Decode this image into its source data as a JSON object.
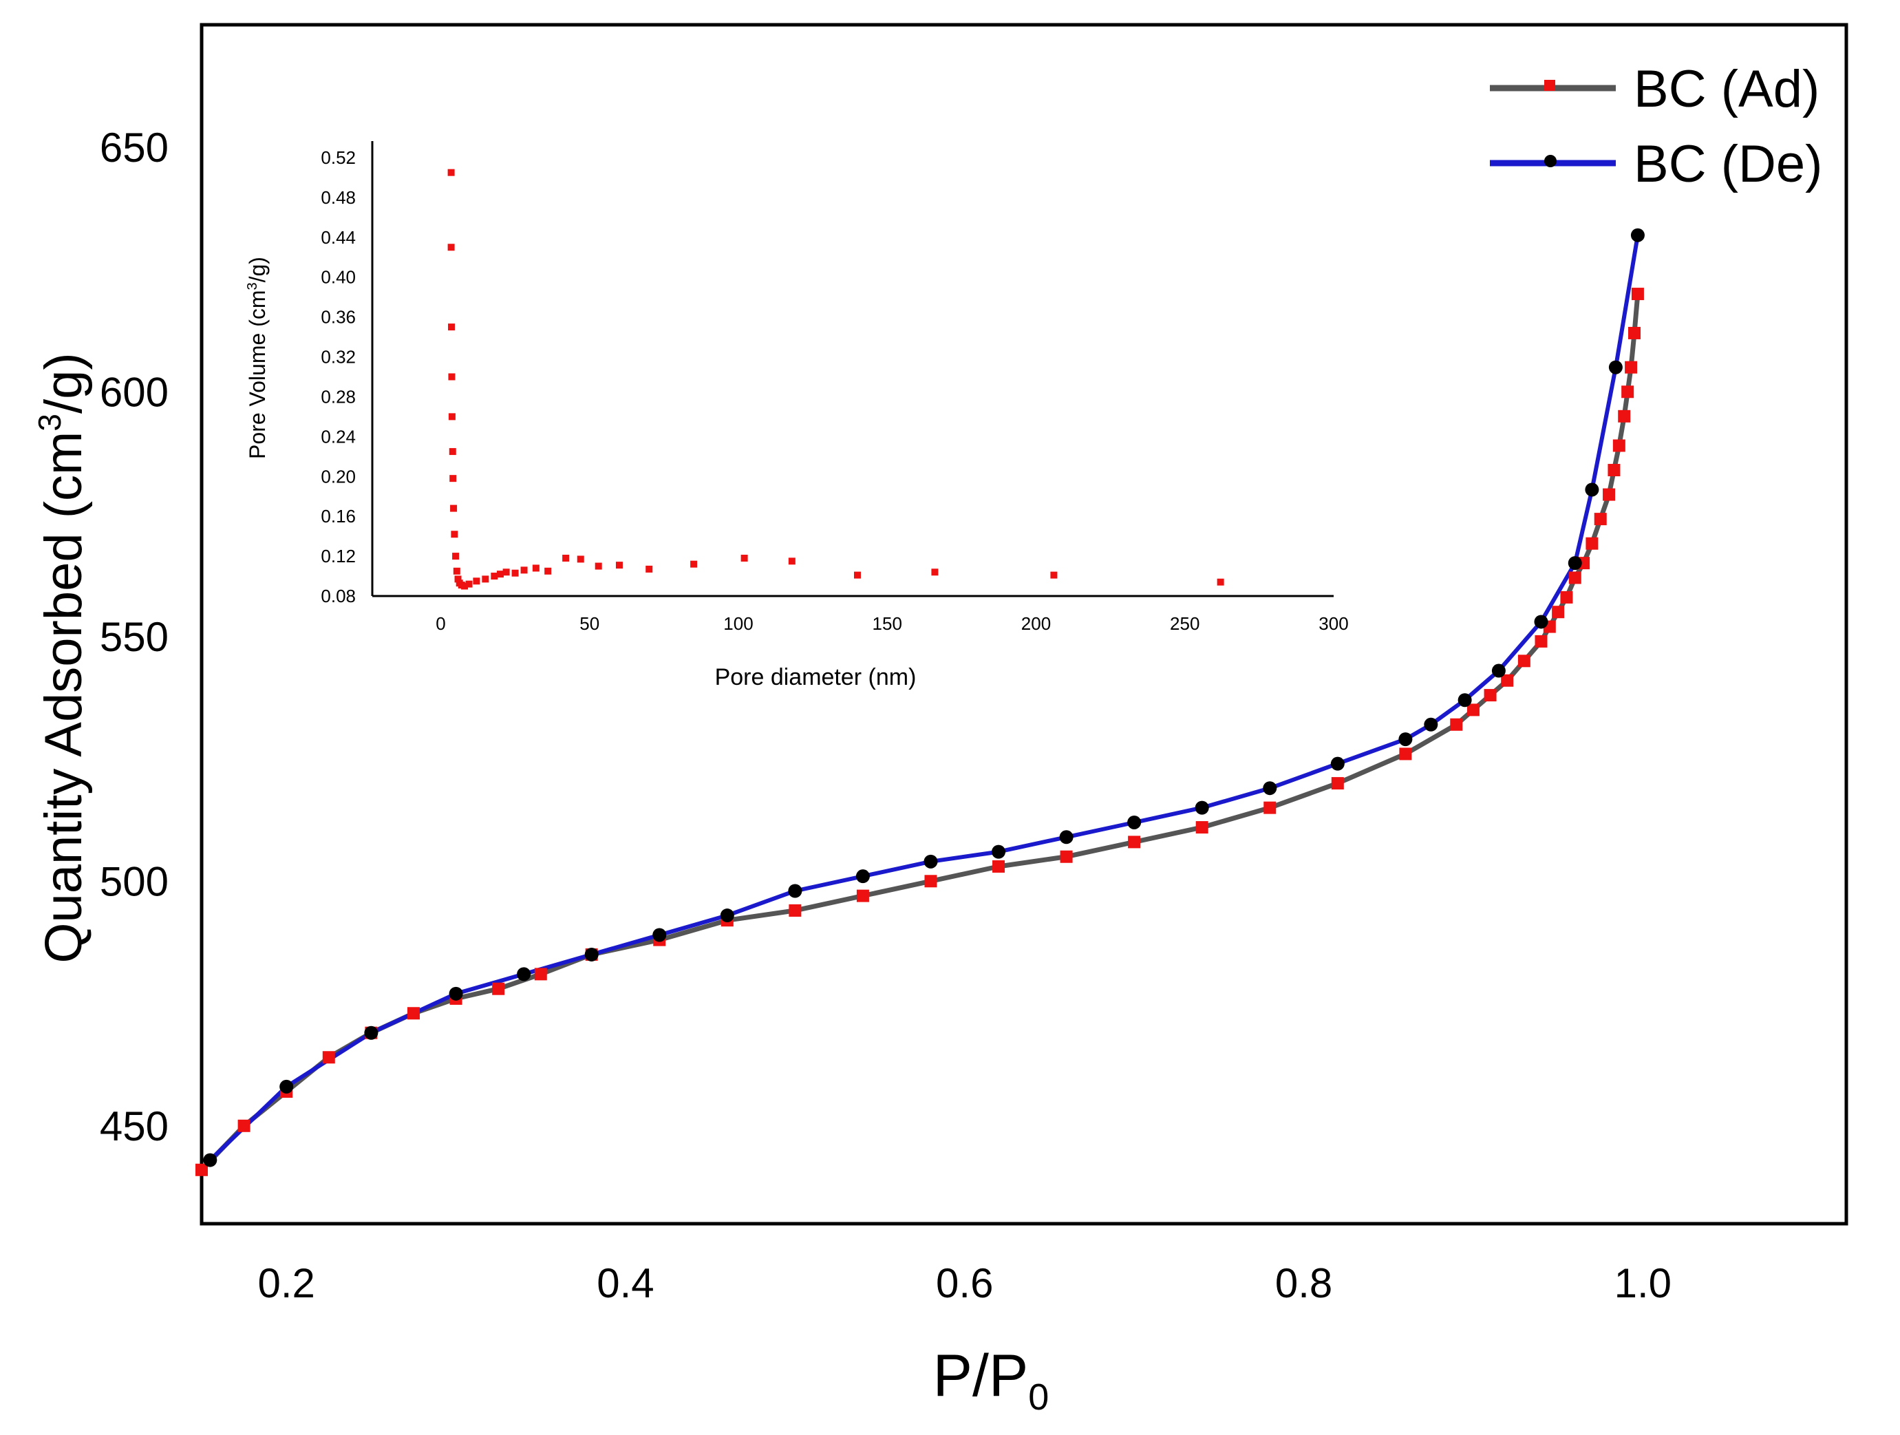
{
  "chart_data": [
    {
      "type": "line",
      "xlabel": "P/P",
      "xlabel_sub": "0",
      "ylabel": "Quantity Adsorbed (cm",
      "ylabel_sup": "3",
      "ylabel_tail": "/g)",
      "xlim": [
        0.15,
        1.12
      ],
      "ylim": [
        430,
        675
      ],
      "xticks": [
        "0.2",
        "0.4",
        "0.6",
        "0.8",
        "1.0"
      ],
      "xtick_values": [
        0.2,
        0.4,
        0.6,
        0.8,
        1.0
      ],
      "yticks": [
        "450",
        "500",
        "550",
        "600",
        "650"
      ],
      "ytick_values": [
        450,
        500,
        550,
        600,
        650
      ],
      "legend_position": "top-right",
      "series": [
        {
          "name": "BC (Ad)",
          "line_color": "#555555",
          "marker_color": "#ee1111",
          "marker": "square",
          "x": [
            0.15,
            0.175,
            0.2,
            0.225,
            0.25,
            0.275,
            0.3,
            0.325,
            0.35,
            0.38,
            0.42,
            0.46,
            0.5,
            0.54,
            0.58,
            0.62,
            0.66,
            0.7,
            0.74,
            0.78,
            0.82,
            0.86,
            0.89,
            0.9,
            0.91,
            0.92,
            0.93,
            0.94,
            0.945,
            0.95,
            0.955,
            0.96,
            0.965,
            0.97,
            0.975,
            0.98,
            0.983,
            0.986,
            0.989,
            0.991,
            0.993,
            0.995,
            0.997
          ],
          "y": [
            441,
            450,
            457,
            464,
            469,
            473,
            476,
            478,
            481,
            485,
            488,
            492,
            494,
            497,
            500,
            503,
            505,
            508,
            511,
            515,
            520,
            526,
            532,
            535,
            538,
            541,
            545,
            549,
            552,
            555,
            558,
            562,
            565,
            569,
            574,
            579,
            584,
            589,
            595,
            600,
            605,
            612,
            620
          ]
        },
        {
          "name": "BC (De)",
          "line_color": "#1a1acc",
          "marker_color": "#000000",
          "marker": "circle",
          "x": [
            0.155,
            0.2,
            0.25,
            0.3,
            0.34,
            0.38,
            0.42,
            0.46,
            0.5,
            0.54,
            0.58,
            0.62,
            0.66,
            0.7,
            0.74,
            0.78,
            0.82,
            0.86,
            0.875,
            0.895,
            0.915,
            0.94,
            0.96,
            0.97,
            0.984,
            0.997
          ],
          "y": [
            443,
            458,
            469,
            477,
            481,
            485,
            489,
            493,
            498,
            501,
            504,
            506,
            509,
            512,
            515,
            519,
            524,
            529,
            532,
            537,
            543,
            553,
            565,
            580,
            605,
            632
          ]
        }
      ]
    },
    {
      "type": "scatter",
      "xlabel": "Pore diameter (nm)",
      "ylabel": "Pore Volume (cm",
      "ylabel_sup": "3",
      "ylabel_tail": "/g)",
      "xlim": [
        -23,
        300
      ],
      "ylim": [
        0.08,
        0.54
      ],
      "xticks": [
        "0",
        "50",
        "100",
        "150",
        "200",
        "250",
        "300"
      ],
      "xtick_values": [
        0,
        50,
        100,
        150,
        200,
        250,
        300
      ],
      "yticks": [
        "0.52",
        "0.48",
        "0.44",
        "0.40",
        "0.36",
        "0.32",
        "0.28",
        "0.24",
        "0.20",
        "0.16",
        "0.12",
        "0.08"
      ],
      "ytick_values": [
        0.52,
        0.48,
        0.44,
        0.4,
        0.36,
        0.32,
        0.28,
        0.24,
        0.2,
        0.16,
        0.12,
        0.08
      ],
      "series": [
        {
          "marker_color": "#ee1111",
          "marker": "square",
          "x": [
            3.5,
            3.5,
            3.6,
            3.7,
            3.8,
            4.0,
            4.1,
            4.3,
            4.6,
            5,
            5.4,
            5.8,
            6.3,
            7,
            8,
            9.5,
            12,
            15,
            18,
            20,
            22,
            25,
            28,
            32,
            36,
            42,
            47,
            53,
            60,
            70,
            85,
            102,
            118,
            140,
            166,
            206,
            262
          ],
          "y": [
            0.505,
            0.43,
            0.35,
            0.3,
            0.26,
            0.225,
            0.198,
            0.168,
            0.142,
            0.12,
            0.105,
            0.097,
            0.093,
            0.091,
            0.09,
            0.092,
            0.095,
            0.097,
            0.1,
            0.102,
            0.104,
            0.103,
            0.106,
            0.108,
            0.105,
            0.118,
            0.117,
            0.11,
            0.111,
            0.107,
            0.112,
            0.118,
            0.115,
            0.101,
            0.104,
            0.101,
            0.094
          ]
        }
      ]
    }
  ]
}
